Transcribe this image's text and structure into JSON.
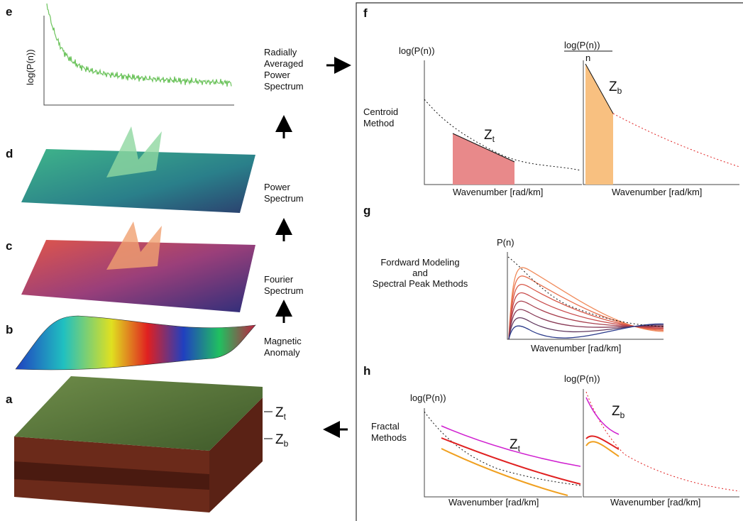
{
  "panels": {
    "e": {
      "letter": "e",
      "y_label": "log(P(n))",
      "caption": [
        "Radially",
        "Averaged",
        "Power",
        "Spectrum"
      ]
    },
    "d": {
      "letter": "d",
      "caption": [
        "Power",
        "Spectrum"
      ]
    },
    "c": {
      "letter": "c",
      "caption": [
        "Fourier",
        "Spectrum"
      ]
    },
    "b": {
      "letter": "b",
      "caption": [
        "Magnetic",
        "Anomaly"
      ]
    },
    "a": {
      "letter": "a",
      "depths": [
        {
          "main": "Z",
          "sub": "t"
        },
        {
          "main": "Z",
          "sub": "b"
        }
      ]
    },
    "f": {
      "letter": "f",
      "method": [
        "Centroid",
        "Method"
      ],
      "left": {
        "y_label": "log(P(n))",
        "x_label": "Wavenumber [rad/km]",
        "depth": {
          "main": "Z",
          "sub": "t"
        }
      },
      "right": {
        "y_label_numerator": "log(P(n))",
        "y_label_denominator": "n",
        "x_label": "Wavenumber [rad/km]",
        "depth": {
          "main": "Z",
          "sub": "b"
        }
      }
    },
    "g": {
      "letter": "g",
      "method": [
        "Fordward Modeling",
        "and",
        "Spectral Peak Methods"
      ],
      "y_label": "P(n)",
      "x_label": "Wavenumber [rad/km]"
    },
    "h": {
      "letter": "h",
      "method": [
        "Fractal",
        "Methods"
      ],
      "left": {
        "y_label": "log(P(n))",
        "x_label": "Wavenumber [rad/km]",
        "depth": {
          "main": "Z",
          "sub": "t"
        }
      },
      "right": {
        "y_label": "log(P(n))",
        "x_label": "Wavenumber [rad/km]",
        "depth": {
          "main": "Z",
          "sub": "b"
        }
      }
    }
  }
}
